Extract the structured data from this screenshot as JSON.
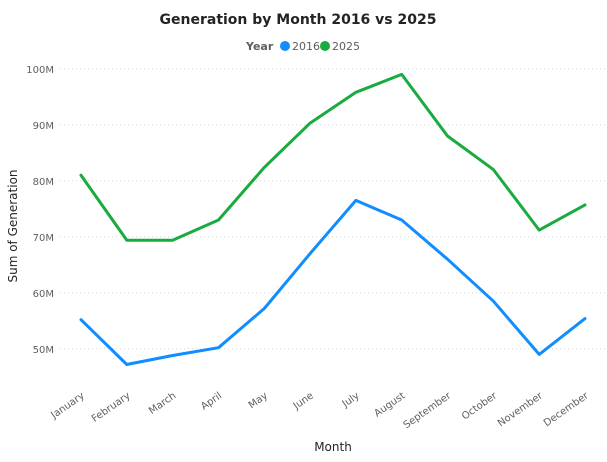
{
  "chart_data": {
    "type": "line",
    "title": "Generation by Month 2016 vs 2025",
    "xlabel": "Month",
    "ylabel": "Sum of Generation",
    "legend_title": "Year",
    "legend_position": "top-center",
    "grid": true,
    "categories": [
      "January",
      "February",
      "March",
      "April",
      "May",
      "June",
      "July",
      "August",
      "September",
      "October",
      "November",
      "December"
    ],
    "y_ticks": [
      {
        "value": 50000000,
        "label": "50M"
      },
      {
        "value": 60000000,
        "label": "60M"
      },
      {
        "value": 70000000,
        "label": "70M"
      },
      {
        "value": 80000000,
        "label": "80M"
      },
      {
        "value": 90000000,
        "label": "90M"
      },
      {
        "value": 100000000,
        "label": "100M"
      }
    ],
    "ylim": [
      43000000,
      103000000
    ],
    "series": [
      {
        "name": "2016",
        "color": "#118dff",
        "values": [
          55200000,
          47200000,
          48800000,
          50200000,
          57200000,
          67000000,
          76500000,
          73000000,
          66000000,
          58500000,
          49000000,
          55400000
        ]
      },
      {
        "name": "2025",
        "color": "#1aab40",
        "values": [
          81000000,
          69400000,
          69400000,
          73000000,
          82400000,
          90300000,
          95800000,
          99000000,
          88000000,
          82000000,
          71200000,
          75700000
        ]
      }
    ]
  }
}
